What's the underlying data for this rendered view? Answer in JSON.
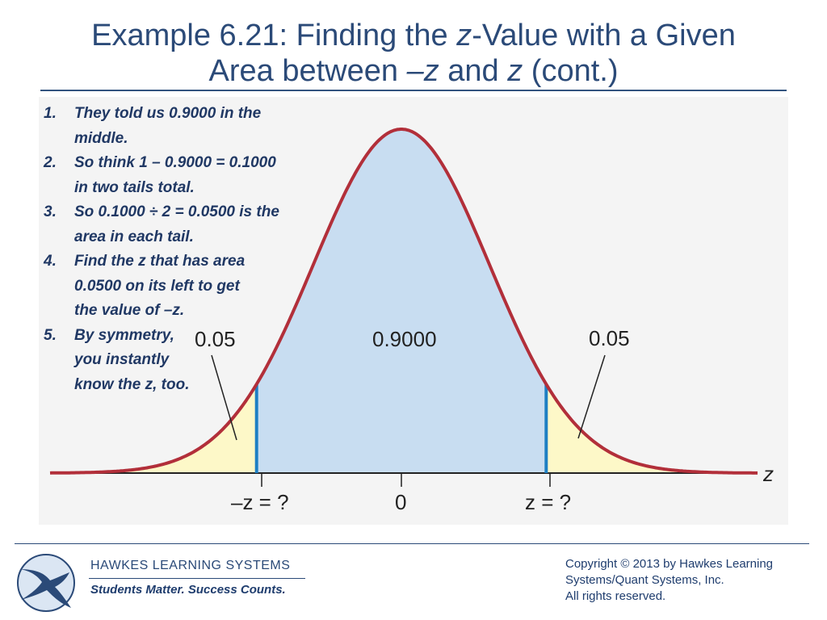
{
  "title": {
    "line1_pre": "Example 6.21: Finding the ",
    "line1_z": "z",
    "line1_post": "-Value with a Given",
    "line2_pre": "Area between ",
    "line2_negz": "–z",
    "line2_mid": " and ",
    "line2_z": "z",
    "line2_post": " (cont.)"
  },
  "steps": [
    {
      "num": "1.",
      "text": "They told us 0.9000 in the\nmiddle."
    },
    {
      "num": "2.",
      "text": "So think 1 – 0.9000  = 0.1000\nin two tails total."
    },
    {
      "num": "3.",
      "text": "So 0.1000 ÷ 2 = 0.0500 is the\narea in each tail."
    },
    {
      "num": "4.",
      "text": "Find the z that has area\n0.0500 on its left to get\nthe value of –z."
    },
    {
      "num": "5.",
      "text": "By symmetry,\nyou instantly\nknow the z, too."
    }
  ],
  "figure": {
    "left_tail_label": "0.05",
    "center_label": "0.9000",
    "right_tail_label": "0.05",
    "axis_label": "z",
    "tick_neg": "–z = ?",
    "tick_zero": "0",
    "tick_pos": "z = ?",
    "colors": {
      "curve": "#b22f3a",
      "center_fill": "#c8ddf1",
      "tail_fill": "#fdf8c8",
      "boundary": "#1e7fc3",
      "background": "#f4f4f4"
    }
  },
  "footer": {
    "company": "HAWKES  LEARNING  SYSTEMS",
    "tagline": "Students Matter. Success Counts.",
    "copyright": "Copyright © 2013 by Hawkes Learning\nSystems/Quant Systems, Inc.\nAll rights reserved."
  }
}
